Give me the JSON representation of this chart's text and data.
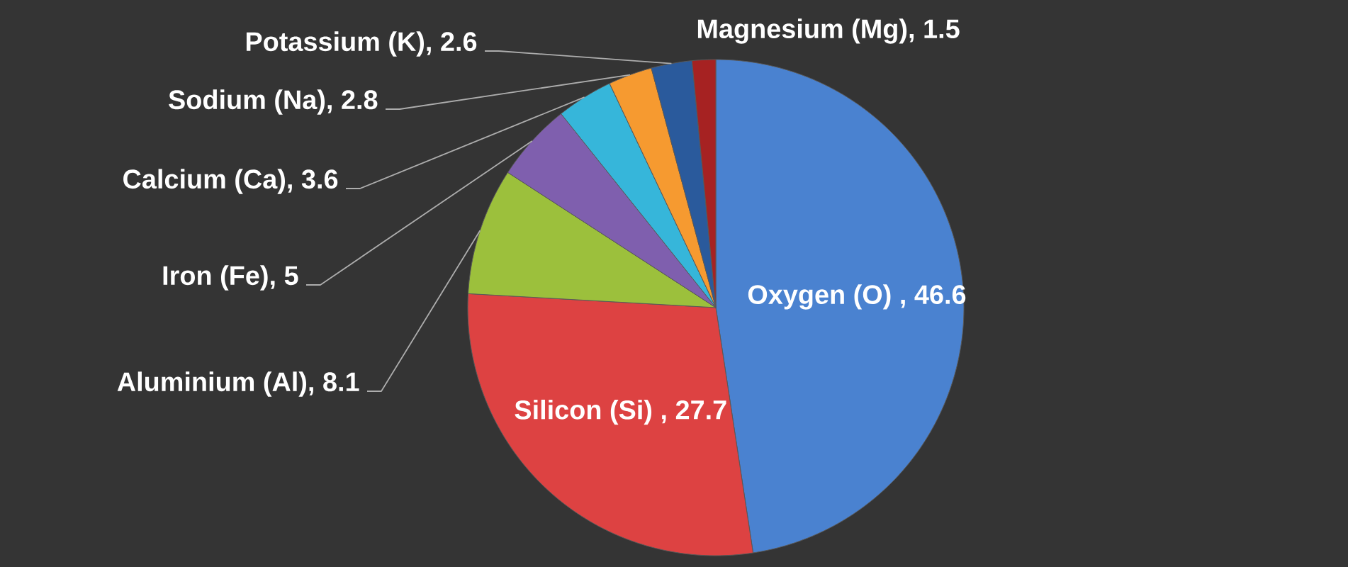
{
  "chart_data": {
    "type": "pie",
    "categories": [
      null,
      null,
      null,
      null,
      null,
      null,
      null,
      null
    ],
    "values": [
      46.6,
      27.7,
      8.1,
      5,
      3.6,
      2.8,
      2.6,
      1.5
    ],
    "value_labels": [
      "Oxygen (O) , 46.6",
      "Silicon (Si) , 27.7",
      "Aluminium (Al), 8.1",
      "Iron (Fe), 5",
      "Calcium (Ca), 3.6",
      "Sodium (Na), 2.8",
      "Potassium (K), 2.6",
      "Magnesium (Mg), 1.5"
    ],
    "colors": [
      "#4a82d0",
      "#dd4242",
      "#9cc03c",
      "#7f5fae",
      "#36b6da",
      "#f69a30",
      "#2a5a9c",
      "#a62222"
    ]
  }
}
